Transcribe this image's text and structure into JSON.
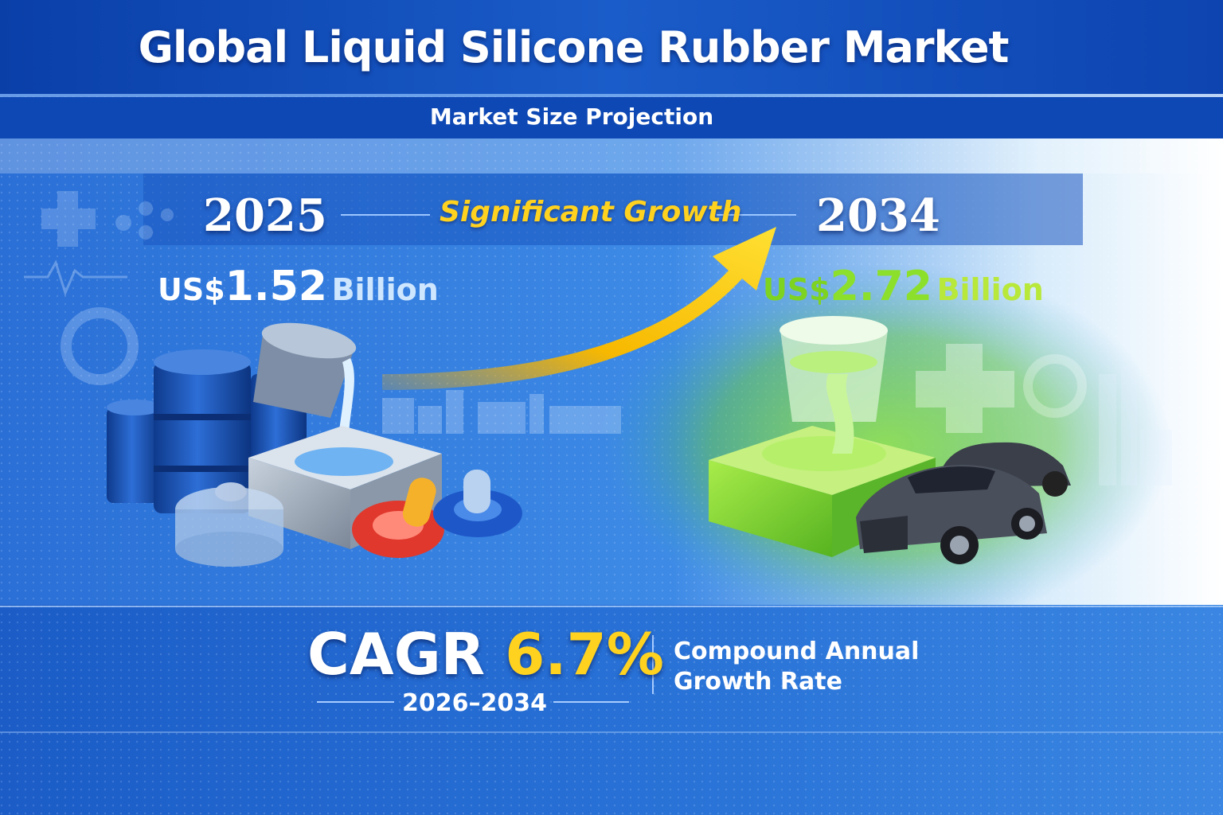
{
  "title": "Global Liquid Silicone Rubber Market",
  "subtitle": "Market Size Projection",
  "growth_label": "Significant Growth",
  "start": {
    "year": "2025",
    "currency": "US$",
    "value": "1.52",
    "unit": "Billion"
  },
  "end": {
    "year": "2034",
    "currency": "US$",
    "value": "2.72",
    "unit": "Billion"
  },
  "cagr": {
    "label": "CAGR",
    "value": "6.7%",
    "period": "2026–2034",
    "description_line1": "Compound Annual",
    "description_line2": "Growth Rate"
  },
  "colors": {
    "accent_yellow": "#ffd21f",
    "accent_green": "#7ed321",
    "brand_blue": "#1d5fc8"
  },
  "icons": [
    "medical-cross-icon",
    "gear-icon",
    "heartbeat-icon",
    "factory-skyline-icon",
    "oil-drum-icon",
    "mold-icon",
    "pacifier-icon",
    "car-icon",
    "growth-arrow-icon"
  ]
}
